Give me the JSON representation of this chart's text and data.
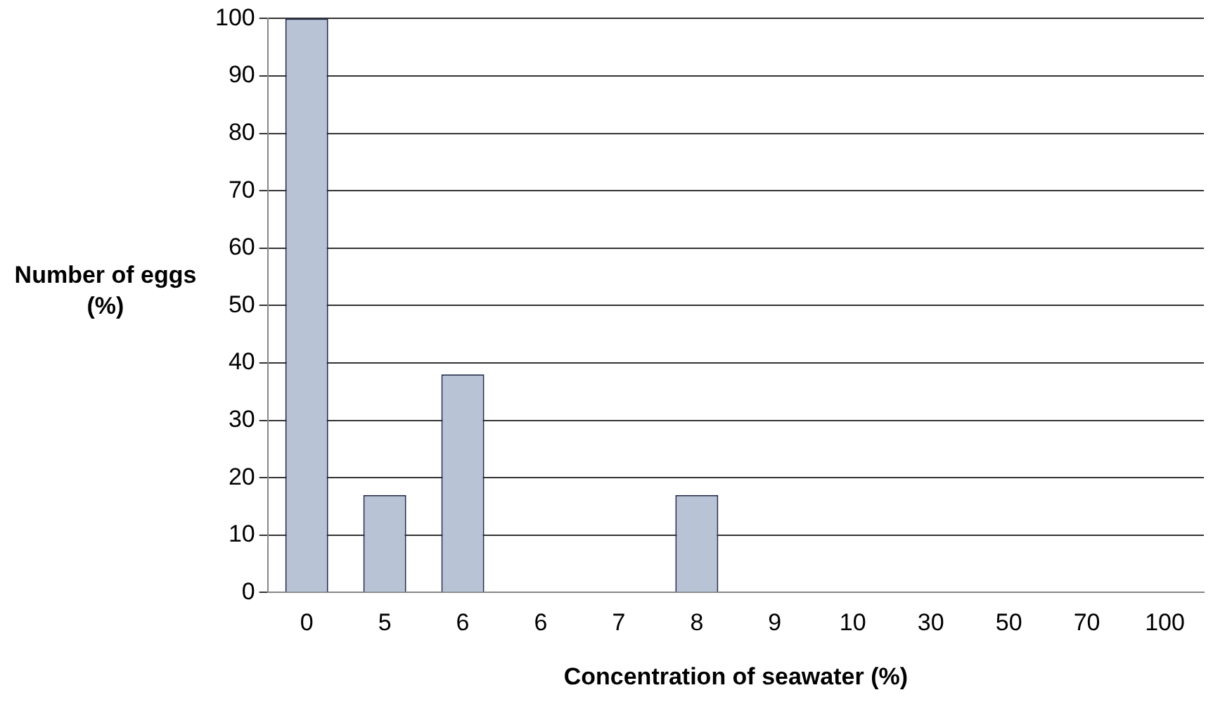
{
  "chart_data": {
    "type": "bar",
    "xlabel": "Concentration of seawater (%)",
    "ylabel": "Number of eggs (%)",
    "categories": [
      "0",
      "5",
      "6",
      "6",
      "7",
      "8",
      "9",
      "10",
      "30",
      "50",
      "70",
      "100"
    ],
    "values": [
      100,
      17,
      38,
      0,
      0,
      17,
      0,
      0,
      0,
      0,
      0,
      0
    ],
    "color": "#b8c3d6",
    "ylim": [
      0,
      100
    ],
    "yticks": [
      0,
      10,
      20,
      30,
      40,
      50,
      60,
      70,
      80,
      90,
      100
    ],
    "grid": "y",
    "legend": false
  }
}
